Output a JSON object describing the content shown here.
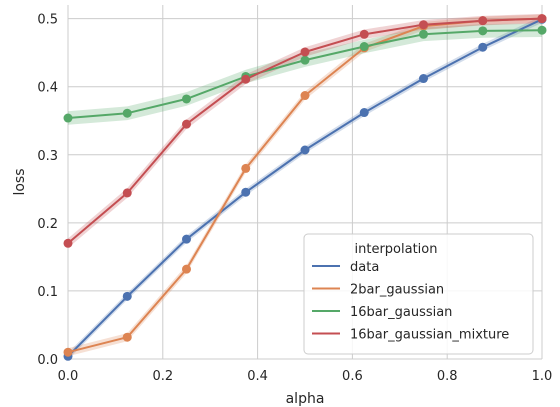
{
  "chart_data": {
    "type": "line",
    "xlabel": "alpha",
    "ylabel": "loss",
    "xlim": [
      0.0,
      1.0
    ],
    "ylim": [
      0.0,
      0.52
    ],
    "xticks": [
      0.0,
      0.2,
      0.4,
      0.6,
      0.8,
      1.0
    ],
    "xtick_labels": [
      "0.0",
      "0.2",
      "0.4",
      "0.6",
      "0.8",
      "1.0"
    ],
    "yticks": [
      0.0,
      0.1,
      0.2,
      0.3,
      0.4,
      0.5
    ],
    "ytick_labels": [
      "0.0",
      "0.1",
      "0.2",
      "0.3",
      "0.4",
      "0.5"
    ],
    "grid": true,
    "legend": {
      "title": "interpolation",
      "placement": "lower-right"
    },
    "x": [
      0.0,
      0.125,
      0.25,
      0.375,
      0.5,
      0.625,
      0.75,
      0.875,
      1.0
    ],
    "series": [
      {
        "name": "data",
        "color": "#4c72b0",
        "values": [
          0.004,
          0.092,
          0.176,
          0.245,
          0.307,
          0.362,
          0.412,
          0.458,
          0.499
        ],
        "band": 0.005
      },
      {
        "name": "2bar_gaussian",
        "color": "#dd8452",
        "values": [
          0.01,
          0.032,
          0.132,
          0.28,
          0.387,
          0.457,
          0.489,
          0.497,
          0.5
        ],
        "band": 0.006
      },
      {
        "name": "16bar_gaussian",
        "color": "#55a868",
        "values": [
          0.354,
          0.361,
          0.382,
          0.415,
          0.439,
          0.459,
          0.477,
          0.482,
          0.483
        ],
        "band": 0.01
      },
      {
        "name": "16bar_gaussian_mixture",
        "color": "#c44e52",
        "values": [
          0.17,
          0.244,
          0.345,
          0.411,
          0.451,
          0.477,
          0.491,
          0.497,
          0.5
        ],
        "band": 0.007
      }
    ]
  }
}
